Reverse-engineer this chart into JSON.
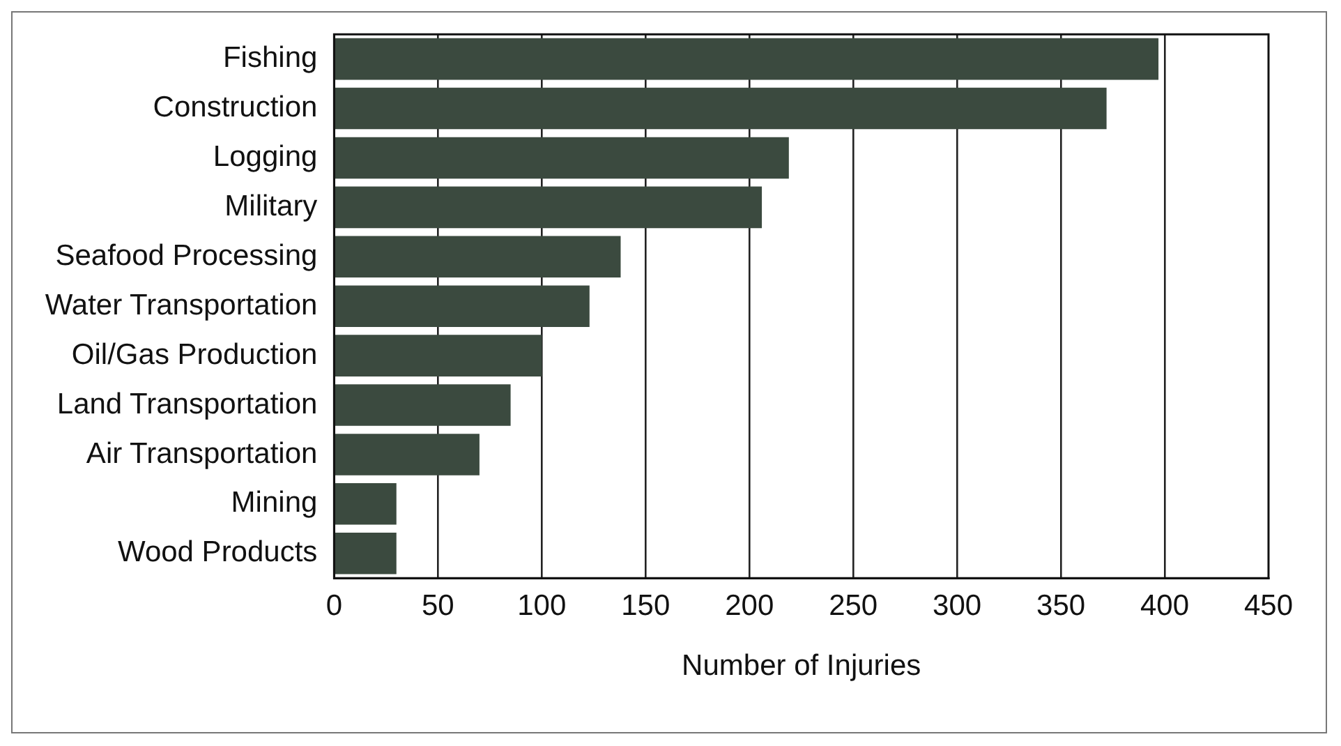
{
  "chart_data": {
    "type": "bar",
    "orientation": "horizontal",
    "xlabel": "Number of Injuries",
    "categories": [
      "Fishing",
      "Construction",
      "Logging",
      "Military",
      "Seafood Processing",
      "Water Transportation",
      "Oil/Gas Production",
      "Land Transportation",
      "Air Transportation",
      "Mining",
      "Wood Products"
    ],
    "values": [
      397,
      372,
      219,
      206,
      138,
      123,
      100,
      85,
      70,
      30,
      30
    ],
    "color": "#3b4a3f",
    "xlim": [
      0,
      450
    ],
    "xticks": [
      0,
      50,
      100,
      150,
      200,
      250,
      300,
      350,
      400,
      450
    ],
    "grid": "x",
    "legend": false
  }
}
